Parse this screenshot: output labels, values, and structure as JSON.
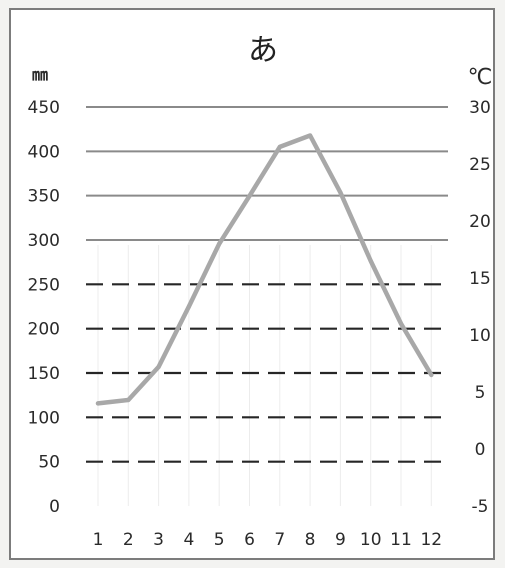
{
  "chart_data": {
    "type": "line",
    "title": "あ",
    "y_unit_left": "㎜",
    "y_unit_right": "℃",
    "categories": [
      "1",
      "2",
      "3",
      "4",
      "5",
      "6",
      "7",
      "8",
      "9",
      "10",
      "11",
      "12"
    ],
    "ylim": [
      0,
      450
    ],
    "y_ticks": [
      "0",
      "50",
      "100",
      "150",
      "200",
      "250",
      "300",
      "350",
      "400",
      "450"
    ],
    "y2lim": [
      -5,
      30
    ],
    "y2_ticks": [
      "-5",
      "0",
      "5",
      "10",
      "15",
      "20",
      "25",
      "30"
    ],
    "grid": true,
    "series": [
      {
        "axis": "right",
        "color": "#a8a8a8",
        "values": [
          4.0,
          4.3,
          7.2,
          12.5,
          18.0,
          22.2,
          26.5,
          27.5,
          22.5,
          16.5,
          11.0,
          6.5
        ]
      }
    ]
  }
}
